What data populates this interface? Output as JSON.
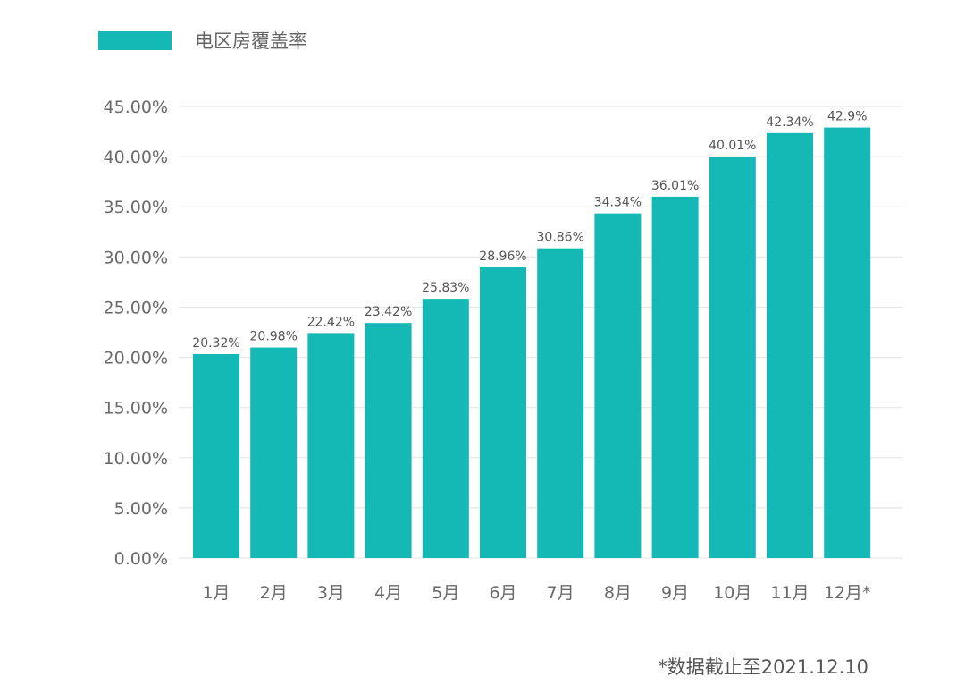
{
  "chart_data": {
    "type": "bar",
    "legend": "电区房覆盖率",
    "legend_position": "top-left",
    "color": "#14B8B5",
    "categories": [
      "1月",
      "2月",
      "3月",
      "4月",
      "5月",
      "6月",
      "7月",
      "8月",
      "9月",
      "10月",
      "11月",
      "12月*"
    ],
    "values": [
      20.32,
      20.98,
      22.42,
      23.42,
      25.83,
      28.96,
      30.86,
      34.34,
      36.01,
      40.01,
      42.34,
      42.9
    ],
    "data_labels": [
      "20.32%",
      "20.98%",
      "22.42%",
      "23.42%",
      "25.83%",
      "28.96%",
      "30.86%",
      "34.34%",
      "36.01%",
      "40.01%",
      "42.34%",
      "42.9%"
    ],
    "yticks": [
      "0.00%",
      "5.00%",
      "10.00%",
      "15.00%",
      "20.00%",
      "25.00%",
      "30.00%",
      "35.00%",
      "40.00%",
      "45.00%"
    ],
    "ylim": [
      0,
      45
    ],
    "grid": true,
    "footnote": "*数据截止至2021.12.10"
  }
}
